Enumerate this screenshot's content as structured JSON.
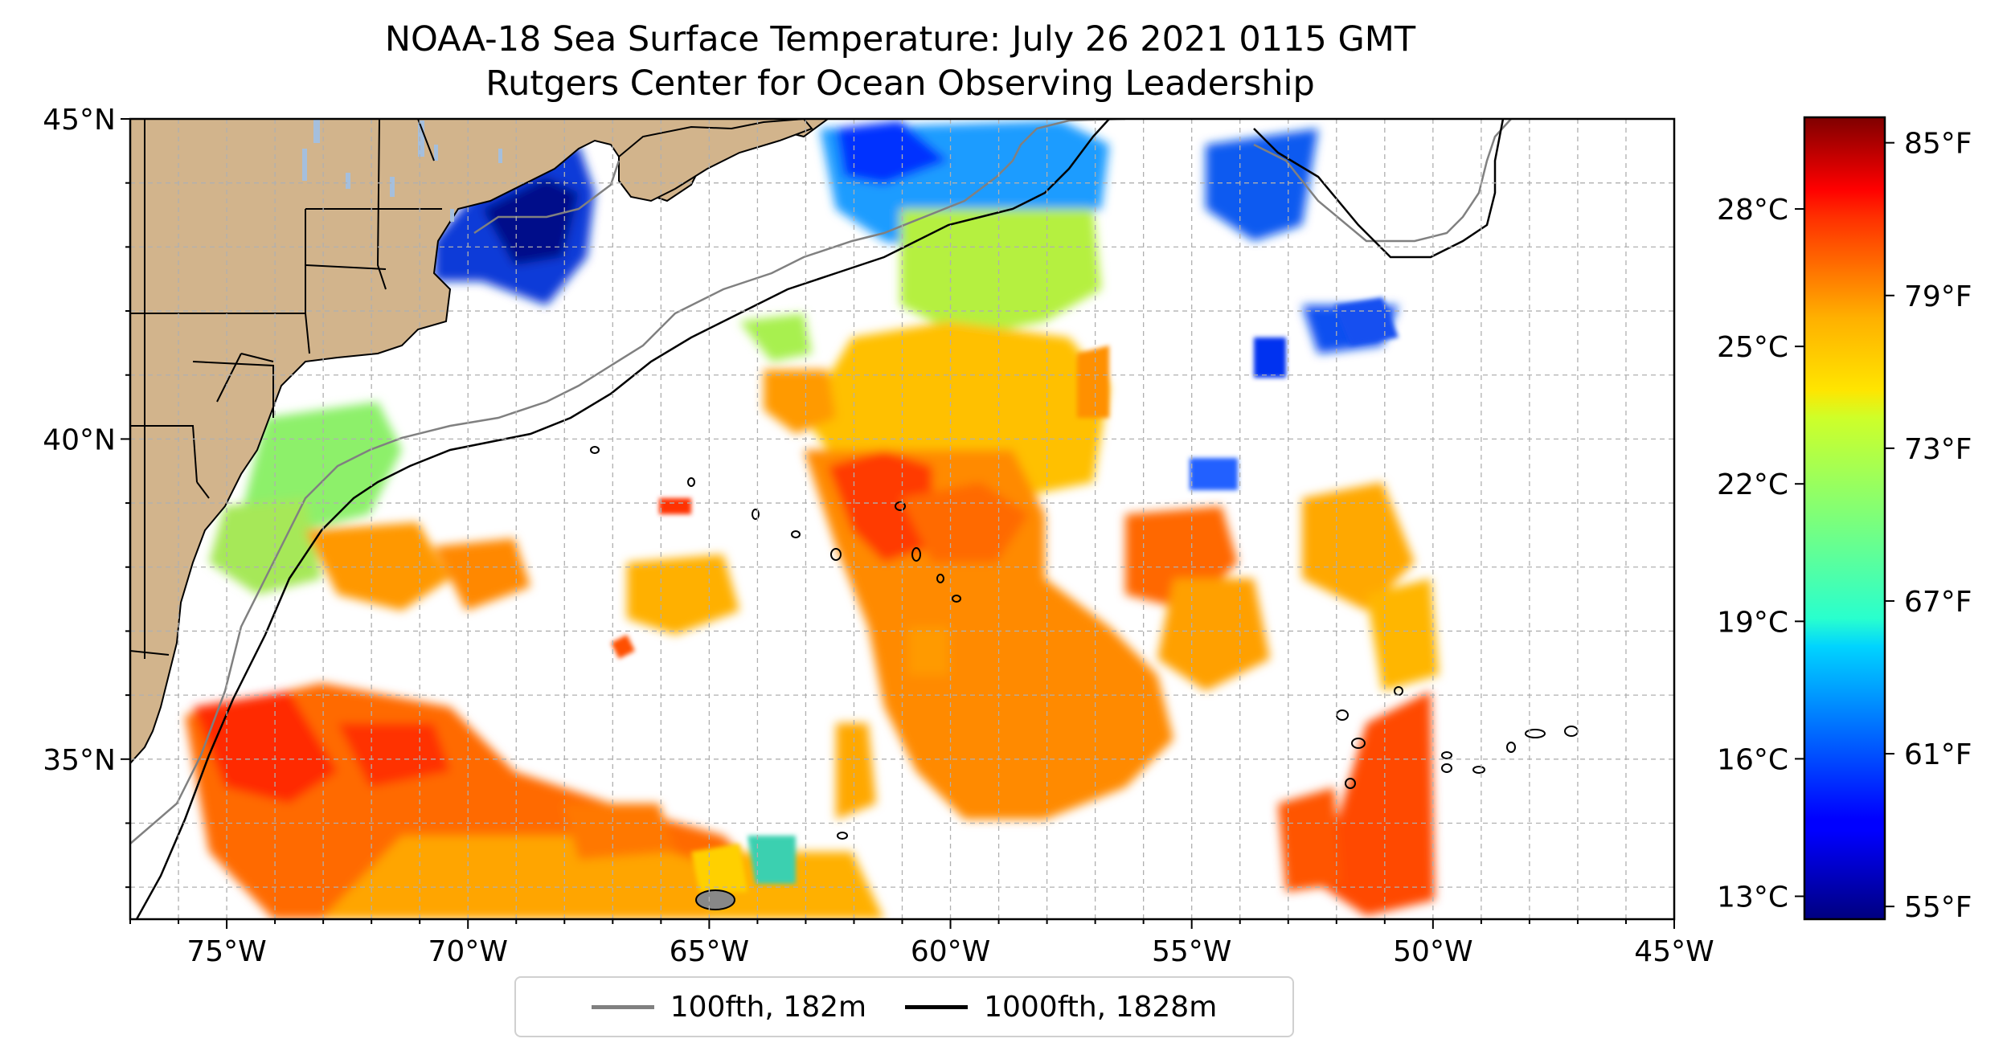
{
  "title": {
    "line1": "NOAA-18 Sea Surface Temperature: July 26 2021 0115 GMT",
    "line2": "Rutgers Center for Ocean Observing Leadership"
  },
  "map": {
    "lon_range": [
      -77,
      -45
    ],
    "lat_range": [
      32.5,
      45
    ],
    "x_ticks": [
      -75,
      -70,
      -65,
      -60,
      -55,
      -50,
      -45
    ],
    "x_tick_labels": [
      "75°W",
      "70°W",
      "65°W",
      "60°W",
      "55°W",
      "50°W",
      "45°W"
    ],
    "y_ticks": [
      35,
      40,
      45
    ],
    "y_tick_labels": [
      "35°N",
      "40°N",
      "45°N"
    ],
    "gridlines": true,
    "land_color": "#d2b48c",
    "lake_color": "#a5bfdd",
    "no_data_color": "#ffffff"
  },
  "legend": {
    "placement": "below map",
    "entries": [
      {
        "label": "100fth, 182m",
        "color": "#808080"
      },
      {
        "label": "1000fth, 1828m",
        "color": "#000000"
      }
    ]
  },
  "colorbar": {
    "colormap": "jet",
    "celsius_ticks": [
      13,
      16,
      19,
      22,
      25,
      28
    ],
    "celsius_labels": [
      "13°C",
      "16°C",
      "19°C",
      "22°C",
      "25°C",
      "28°C"
    ],
    "fahrenheit_ticks": [
      55,
      61,
      67,
      73,
      79,
      85
    ],
    "fahrenheit_labels": [
      "55°F",
      "61°F",
      "67°F",
      "73°F",
      "79°F",
      "85°F"
    ],
    "celsius_range": [
      12.5,
      30.0
    ]
  }
}
